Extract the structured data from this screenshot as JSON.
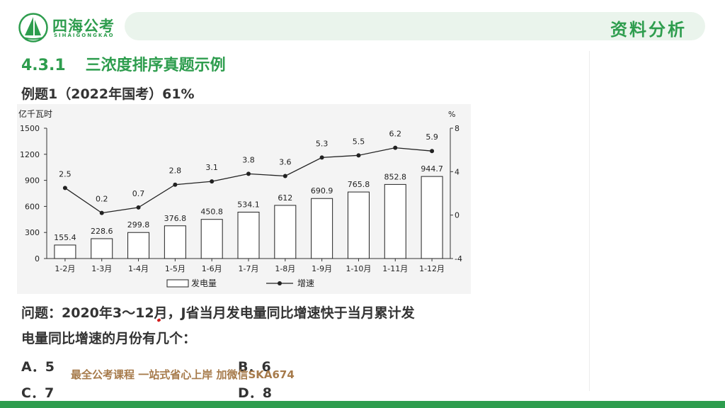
{
  "brand": {
    "name": "四海公考",
    "sub": "SIHAIGONGKAO"
  },
  "header": {
    "label": "资料分析"
  },
  "section": {
    "number": "4.3.1",
    "title": "三浓度排序真题示例"
  },
  "example": {
    "title": "例题1（2022年国考）61%"
  },
  "chart_data": {
    "type": "bar",
    "categories": [
      "1-2月",
      "1-3月",
      "1-4月",
      "1-5月",
      "1-6月",
      "1-7月",
      "1-8月",
      "1-9月",
      "1-10月",
      "1-11月",
      "1-12月"
    ],
    "series": [
      {
        "name": "发电量",
        "type": "bar",
        "axis": "left",
        "values": [
          155.4,
          228.6,
          299.8,
          376.8,
          450.8,
          534.1,
          612,
          690.9,
          765.8,
          852.8,
          944.7
        ]
      },
      {
        "name": "增速",
        "type": "line",
        "axis": "right",
        "values": [
          2.5,
          0.2,
          0.7,
          2.8,
          3.1,
          3.8,
          3.6,
          5.3,
          5.5,
          6.2,
          5.9
        ]
      }
    ],
    "value_labels_bar": [
      "155.4",
      "228.6",
      "299.8",
      "376.8",
      "450.8",
      "534.1",
      "612",
      "690.9",
      "765.8",
      "852.8",
      "944.7"
    ],
    "value_labels_line": [
      "2.5",
      "0.2",
      "0.7",
      "2.8",
      "3.1",
      "3.8",
      "3.6",
      "5.3",
      "5.5",
      "6.2",
      "5.9"
    ],
    "ylabel_left": "亿千瓦时",
    "ylabel_right": "%",
    "ylim_left": [
      0,
      1500
    ],
    "yticks_left": [
      0,
      300,
      600,
      900,
      1200,
      1500
    ],
    "ylim_right": [
      -4,
      8
    ],
    "yticks_right": [
      -4,
      0,
      4,
      8
    ],
    "legend": [
      "发电量",
      "增速"
    ],
    "legend_position": "bottom-center",
    "grid": false
  },
  "question": {
    "line1": "问题：2020年3～12月，J省当月发电量同比增速快于当月累计发",
    "line2": "电量同比增速的月份有几个："
  },
  "options": {
    "a": "A．5",
    "b": "B．6",
    "c": "C．7",
    "d": "D．8"
  },
  "watermark": "最全公考课程 一站式省心上岸 加微信SKA674",
  "colors": {
    "accent": "#2e9d4e",
    "header_bg": "#eaf4ec",
    "watermark": "#a67a4a"
  }
}
